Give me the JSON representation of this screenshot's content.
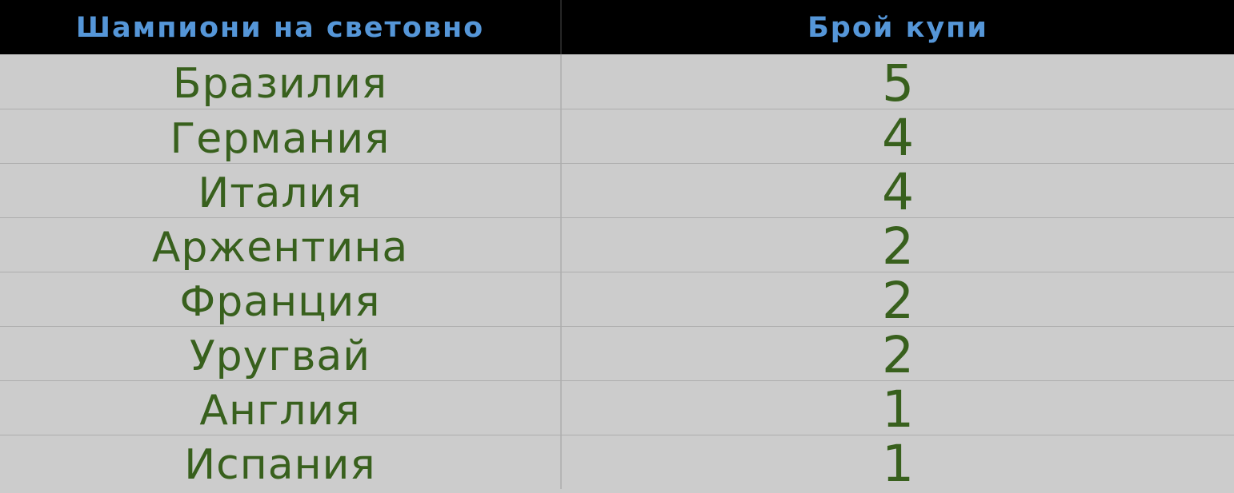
{
  "chart_data": {
    "type": "table",
    "columns": [
      "Шампиони на световно",
      "Брой купи"
    ],
    "rows": [
      [
        "Бразилия",
        5
      ],
      [
        "Германия",
        4
      ],
      [
        "Италия",
        4
      ],
      [
        "Аржентина",
        2
      ],
      [
        "Франция",
        2
      ],
      [
        "Уругвай",
        2
      ],
      [
        "Англия",
        1
      ],
      [
        "Испания",
        1
      ]
    ],
    "layout_hints": {
      "header_position": "top",
      "grid": "horizontal-separators-and-center-divider",
      "text_align": "center"
    }
  },
  "colors": {
    "header_bg": "#000000",
    "header_text": "#5596d8",
    "row_bg": "#cccccc",
    "row_text": "#38601d",
    "grid_line": "#adadad",
    "divider_body": "#b5b5b5",
    "divider_header": "#262626"
  }
}
